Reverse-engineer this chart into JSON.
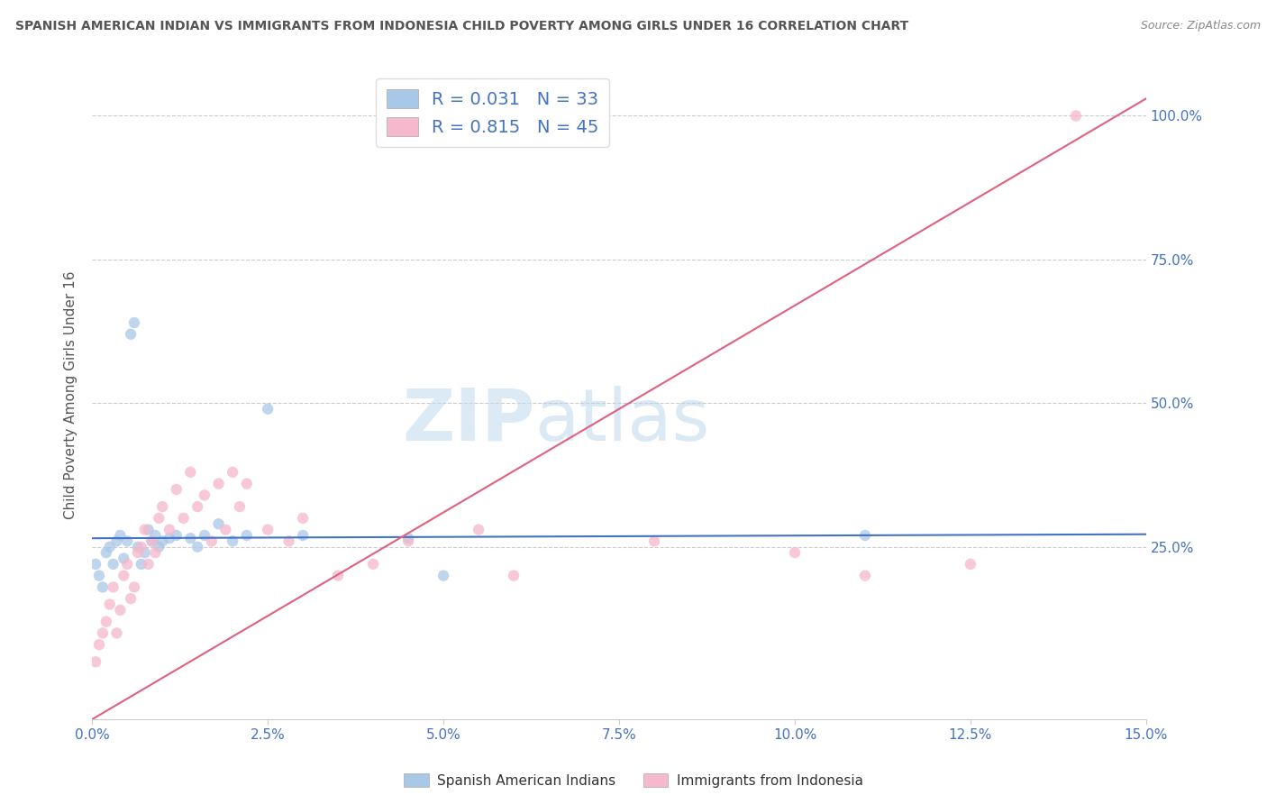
{
  "title": "SPANISH AMERICAN INDIAN VS IMMIGRANTS FROM INDONESIA CHILD POVERTY AMONG GIRLS UNDER 16 CORRELATION CHART",
  "source": "Source: ZipAtlas.com",
  "ylabel": "Child Poverty Among Girls Under 16",
  "xlim": [
    0.0,
    15.0
  ],
  "ylim": [
    -5.0,
    108.0
  ],
  "yticks": [
    25.0,
    50.0,
    75.0,
    100.0
  ],
  "xticks": [
    0.0,
    2.5,
    5.0,
    7.5,
    10.0,
    12.5,
    15.0
  ],
  "blue_color": "#a8c8e8",
  "pink_color": "#f5b8cc",
  "blue_line_color": "#4472c4",
  "pink_line_color": "#e06080",
  "R_blue": 0.031,
  "N_blue": 33,
  "R_pink": 0.815,
  "N_pink": 45,
  "legend_label_blue": "Spanish American Indians",
  "legend_label_pink": "Immigrants from Indonesia",
  "watermark_zip": "ZIP",
  "watermark_atlas": "atlas",
  "blue_line_y0": 26.5,
  "blue_line_y1": 27.2,
  "pink_line_y0": -5.0,
  "pink_line_y1": 103.0,
  "blue_scatter_x": [
    0.05,
    0.1,
    0.15,
    0.2,
    0.25,
    0.3,
    0.35,
    0.4,
    0.45,
    0.5,
    0.55,
    0.6,
    0.65,
    0.7,
    0.75,
    0.8,
    0.85,
    0.9,
    0.95,
    1.0,
    1.1,
    1.2,
    1.4,
    1.5,
    1.6,
    1.8,
    2.0,
    2.2,
    2.5,
    3.0,
    4.5,
    11.0,
    5.0
  ],
  "blue_scatter_y": [
    22.0,
    20.0,
    18.0,
    24.0,
    25.0,
    22.0,
    26.0,
    27.0,
    23.0,
    26.0,
    62.0,
    64.0,
    25.0,
    22.0,
    24.0,
    28.0,
    26.0,
    27.0,
    25.0,
    26.0,
    26.5,
    27.0,
    26.5,
    25.0,
    27.0,
    29.0,
    26.0,
    27.0,
    49.0,
    27.0,
    26.5,
    27.0,
    20.0
  ],
  "pink_scatter_x": [
    0.05,
    0.1,
    0.15,
    0.2,
    0.25,
    0.3,
    0.35,
    0.4,
    0.45,
    0.5,
    0.55,
    0.6,
    0.65,
    0.7,
    0.75,
    0.8,
    0.85,
    0.9,
    0.95,
    1.0,
    1.1,
    1.2,
    1.3,
    1.4,
    1.5,
    1.6,
    1.7,
    1.8,
    1.9,
    2.0,
    2.1,
    2.2,
    2.5,
    2.8,
    3.0,
    3.5,
    4.0,
    4.5,
    5.5,
    6.0,
    8.0,
    10.0,
    11.0,
    12.5,
    14.0
  ],
  "pink_scatter_y": [
    5.0,
    8.0,
    10.0,
    12.0,
    15.0,
    18.0,
    10.0,
    14.0,
    20.0,
    22.0,
    16.0,
    18.0,
    24.0,
    25.0,
    28.0,
    22.0,
    26.0,
    24.0,
    30.0,
    32.0,
    28.0,
    35.0,
    30.0,
    38.0,
    32.0,
    34.0,
    26.0,
    36.0,
    28.0,
    38.0,
    32.0,
    36.0,
    28.0,
    26.0,
    30.0,
    20.0,
    22.0,
    26.0,
    28.0,
    20.0,
    26.0,
    24.0,
    20.0,
    22.0,
    100.0
  ]
}
